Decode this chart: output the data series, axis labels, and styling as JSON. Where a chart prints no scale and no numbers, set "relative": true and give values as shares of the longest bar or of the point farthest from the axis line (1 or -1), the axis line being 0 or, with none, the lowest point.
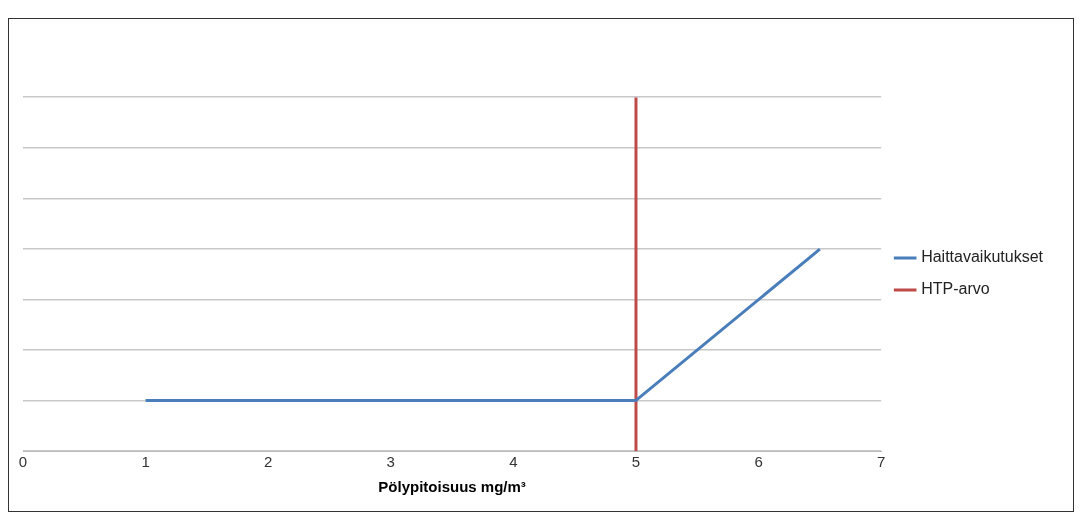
{
  "chart_data": {
    "type": "line",
    "xlabel": "Pölypitoisuus mg/m³",
    "relative": true,
    "xlim": [
      0,
      7
    ],
    "xticks": [
      0,
      1,
      2,
      3,
      4,
      5,
      6,
      7
    ],
    "grid": "y",
    "legend": "right",
    "marker": "none",
    "line_style": "solid",
    "series": [
      {
        "name": "Haittavaikutukset",
        "color": "#4a7ebb",
        "x": [
          1,
          5,
          6.5
        ],
        "values": [
          0.143,
          0.143,
          0.571
        ]
      },
      {
        "name": "HTP-arvo",
        "color": "#be4b48",
        "x": [
          5,
          5
        ],
        "values": [
          0,
          1
        ]
      }
    ]
  }
}
